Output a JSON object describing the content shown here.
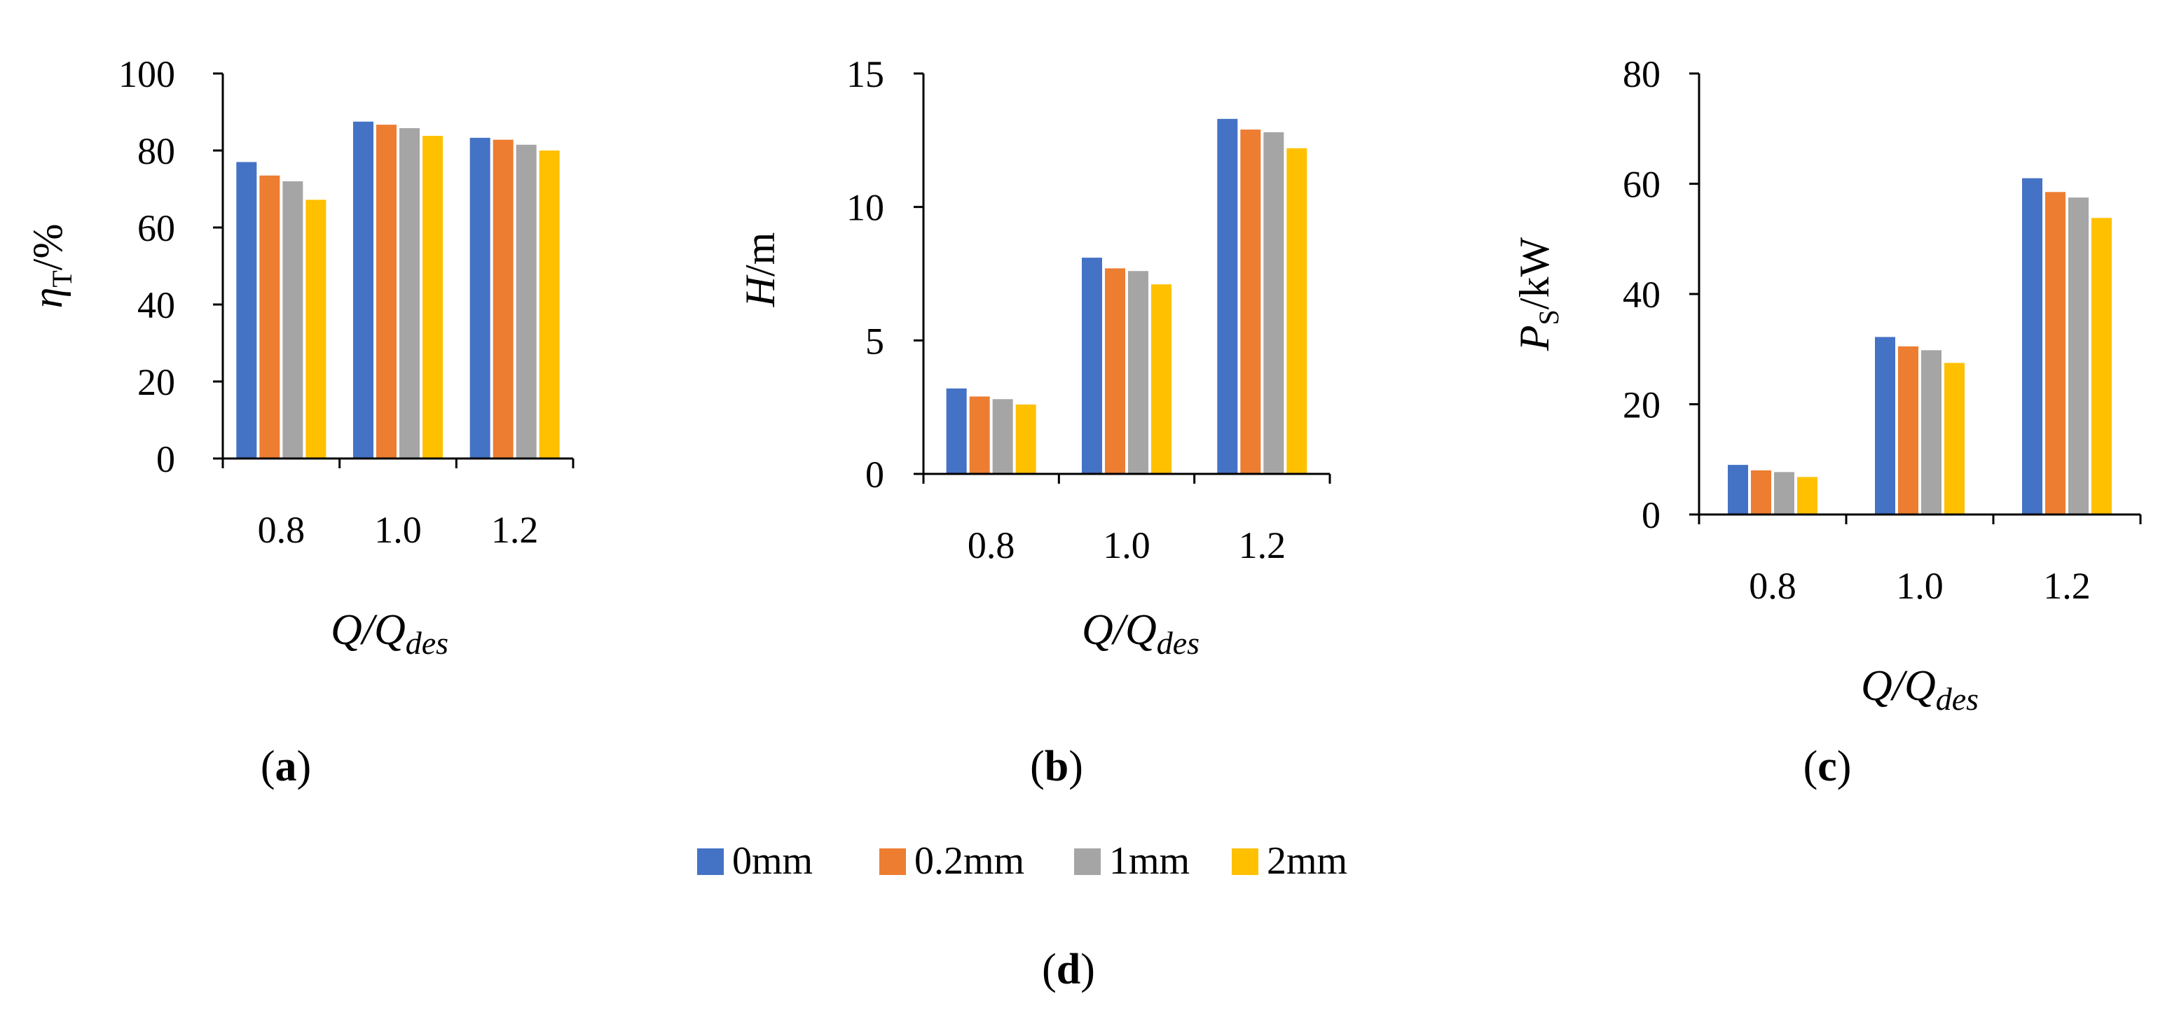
{
  "chart_data": [
    {
      "type": "bar",
      "panel": "a",
      "panel_label": "a",
      "ylabel_symbol": "η",
      "ylabel_sub": "T",
      "ylabel_unit": "/%",
      "xlabel_main": "Q/Q",
      "xlabel_sub": "des",
      "categories": [
        "0.8",
        "1.0",
        "1.2"
      ],
      "ylim": [
        0,
        100
      ],
      "yticks": [
        0,
        20,
        40,
        60,
        80,
        100
      ],
      "series": [
        {
          "name": "0mm",
          "values": [
            77,
            87.5,
            83.3
          ]
        },
        {
          "name": "0.2mm",
          "values": [
            73.5,
            86.7,
            82.8
          ]
        },
        {
          "name": "1mm",
          "values": [
            72,
            85.8,
            81.5
          ]
        },
        {
          "name": "2mm",
          "values": [
            67.2,
            83.8,
            80
          ]
        }
      ]
    },
    {
      "type": "bar",
      "panel": "b",
      "panel_label": "b",
      "ylabel_symbol": "H",
      "ylabel_sub": "",
      "ylabel_unit": "/m",
      "xlabel_main": "Q/Q",
      "xlabel_sub": "des",
      "categories": [
        "0.8",
        "1.0",
        "1.2"
      ],
      "ylim": [
        0,
        15
      ],
      "yticks": [
        0,
        5,
        10,
        15
      ],
      "series": [
        {
          "name": "0mm",
          "values": [
            3.2,
            8.1,
            13.3
          ]
        },
        {
          "name": "0.2mm",
          "values": [
            2.9,
            7.7,
            12.9
          ]
        },
        {
          "name": "1mm",
          "values": [
            2.8,
            7.6,
            12.8
          ]
        },
        {
          "name": "2mm",
          "values": [
            2.6,
            7.1,
            12.2
          ]
        }
      ]
    },
    {
      "type": "bar",
      "panel": "c",
      "panel_label": "c",
      "ylabel_symbol": "P",
      "ylabel_sub": "S",
      "ylabel_unit": "/kW",
      "xlabel_main": "Q/Q",
      "xlabel_sub": "des",
      "categories": [
        "0.8",
        "1.0",
        "1.2"
      ],
      "ylim": [
        0,
        80
      ],
      "yticks": [
        0,
        20,
        40,
        60,
        80
      ],
      "series": [
        {
          "name": "0mm",
          "values": [
            9,
            32.2,
            61
          ]
        },
        {
          "name": "0.2mm",
          "values": [
            8,
            30.5,
            58.5
          ]
        },
        {
          "name": "1mm",
          "values": [
            7.7,
            29.8,
            57.5
          ]
        },
        {
          "name": "2mm",
          "values": [
            6.8,
            27.5,
            53.8
          ]
        }
      ]
    }
  ],
  "legend": {
    "items": [
      {
        "label": "0mm",
        "color": "#4472C4"
      },
      {
        "label": "0.2mm",
        "color": "#ED7D31"
      },
      {
        "label": "1mm",
        "color": "#A5A5A5"
      },
      {
        "label": "2mm",
        "color": "#FFC000"
      }
    ]
  },
  "figure_label": "d"
}
